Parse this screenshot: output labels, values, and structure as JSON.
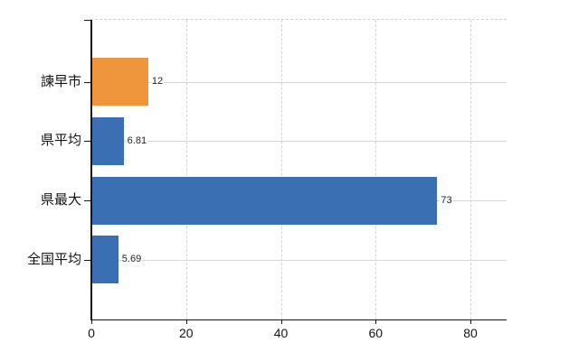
{
  "chart_data": {
    "type": "bar",
    "orientation": "horizontal",
    "title": "",
    "xlabel": "",
    "ylabel": "",
    "categories": [
      "諫早市",
      "県平均",
      "県最大",
      "全国平均"
    ],
    "values": [
      12,
      6.81,
      73,
      5.69
    ],
    "value_labels": [
      "12",
      "6.81",
      "73",
      "5.69"
    ],
    "bar_colors": [
      "#ef963c",
      "#3b6fb3",
      "#3b6fb3",
      "#3b6fb3"
    ],
    "x_ticks": [
      0,
      20,
      40,
      60,
      80
    ],
    "x_tick_labels": [
      "0",
      "20",
      "40",
      "60",
      "80"
    ],
    "xlim": [
      0,
      87.7
    ],
    "grid": "on",
    "legend": "none"
  },
  "colors": {
    "highlight_orange": "#ef963c",
    "series_blue": "#3b6fb3",
    "axis": "#141414",
    "grid_dashed": "#d3d3d3",
    "grid_solid": "#d4d8d3",
    "background": "#ffffff"
  }
}
